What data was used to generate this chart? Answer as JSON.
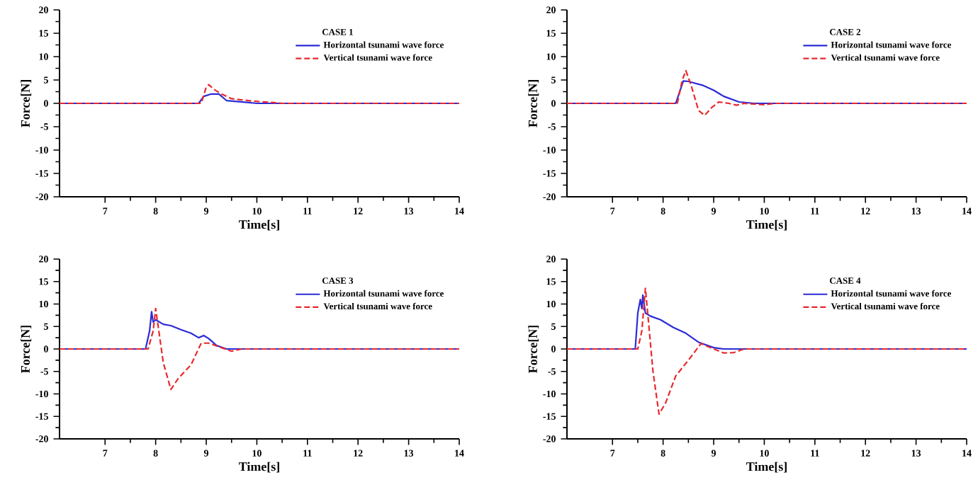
{
  "chart_data": [
    {
      "type": "line",
      "legend_title": "CASE 1",
      "xlabel": "Time[s]",
      "ylabel": "Force[N]",
      "xlim": [
        6.1,
        14
      ],
      "ylim": [
        -20,
        20
      ],
      "xticks": [
        7,
        8,
        9,
        10,
        11,
        12,
        13,
        14
      ],
      "yticks": [
        -20,
        -15,
        -10,
        -5,
        0,
        5,
        10,
        15,
        20
      ],
      "grid": false,
      "legend": "top right",
      "marker": "none",
      "series": [
        {
          "name": "Horizontal tsunami wave force",
          "color": "#2b2bd6",
          "line_style": "solid",
          "x": [
            6.1,
            8.85,
            8.95,
            9.1,
            9.25,
            9.4,
            9.8,
            10,
            14
          ],
          "values": [
            0,
            0,
            1.5,
            2,
            2,
            0.6,
            0.2,
            0,
            0
          ]
        },
        {
          "name": "Vertical tsunami wave force",
          "color": "#e8282c",
          "line_style": "dashed",
          "x": [
            6.1,
            8.9,
            9.0,
            9.05,
            9.15,
            9.3,
            9.5,
            9.9,
            10.3,
            10.5,
            14
          ],
          "values": [
            0,
            0,
            3.5,
            4,
            3,
            2,
            1,
            0.5,
            0.2,
            0,
            0
          ]
        }
      ]
    },
    {
      "type": "line",
      "legend_title": "CASE 2",
      "xlabel": "Time[s]",
      "ylabel": "Force[N]",
      "xlim": [
        6.1,
        14
      ],
      "ylim": [
        -20,
        20
      ],
      "xticks": [
        7,
        8,
        9,
        10,
        11,
        12,
        13,
        14
      ],
      "yticks": [
        -20,
        -15,
        -10,
        -5,
        0,
        5,
        10,
        15,
        20
      ],
      "grid": false,
      "legend": "top right",
      "marker": "none",
      "series": [
        {
          "name": "Horizontal tsunami wave force",
          "color": "#2b2bd6",
          "line_style": "solid",
          "x": [
            6.1,
            8.25,
            8.4,
            8.5,
            8.8,
            9.0,
            9.2,
            9.5,
            9.8,
            14
          ],
          "values": [
            0,
            0,
            4.8,
            4.7,
            3.8,
            2.8,
            1.5,
            0.3,
            0,
            0
          ]
        },
        {
          "name": "Vertical tsunami wave force",
          "color": "#e8282c",
          "line_style": "dashed",
          "x": [
            6.1,
            8.28,
            8.38,
            8.45,
            8.55,
            8.7,
            8.82,
            8.95,
            9.1,
            9.3,
            9.45,
            9.6,
            10,
            10.2,
            14
          ],
          "values": [
            0,
            0,
            5,
            7,
            4,
            -1.5,
            -2.6,
            -1,
            0.3,
            0,
            -0.4,
            0,
            -0.3,
            0,
            0
          ]
        }
      ]
    },
    {
      "type": "line",
      "legend_title": "CASE 3",
      "xlabel": "Time[s]",
      "ylabel": "Force[N]",
      "xlim": [
        6.1,
        14
      ],
      "ylim": [
        -20,
        20
      ],
      "xticks": [
        7,
        8,
        9,
        10,
        11,
        12,
        13,
        14
      ],
      "yticks": [
        -20,
        -15,
        -10,
        -5,
        0,
        5,
        10,
        15,
        20
      ],
      "grid": false,
      "legend": "top right",
      "marker": "none",
      "series": [
        {
          "name": "Horizontal tsunami wave force",
          "color": "#2b2bd6",
          "line_style": "solid",
          "x": [
            6.1,
            7.8,
            7.88,
            7.92,
            7.95,
            8.0,
            8.15,
            8.3,
            8.5,
            8.7,
            8.85,
            8.95,
            9.05,
            9.2,
            9.4,
            14
          ],
          "values": [
            0,
            0,
            4,
            8.3,
            6,
            6.5,
            5.5,
            5.2,
            4.3,
            3.5,
            2.5,
            3,
            2.3,
            0.8,
            0,
            0
          ]
        },
        {
          "name": "Vertical tsunami wave force",
          "color": "#e8282c",
          "line_style": "dashed",
          "x": [
            6.1,
            7.85,
            7.95,
            8.0,
            8.05,
            8.15,
            8.3,
            8.45,
            8.7,
            8.9,
            9.05,
            9.3,
            9.5,
            9.7,
            14
          ],
          "values": [
            0,
            0,
            4,
            9,
            5,
            -3,
            -9,
            -6.5,
            -3.5,
            1.3,
            1.3,
            0.3,
            -0.5,
            0,
            0
          ]
        }
      ]
    },
    {
      "type": "line",
      "legend_title": "CASE 4",
      "xlabel": "Time[s]",
      "ylabel": "Force[N]",
      "xlim": [
        6.1,
        14
      ],
      "ylim": [
        -20,
        20
      ],
      "xticks": [
        7,
        8,
        9,
        10,
        11,
        12,
        13,
        14
      ],
      "yticks": [
        -20,
        -15,
        -10,
        -5,
        0,
        5,
        10,
        15,
        20
      ],
      "grid": false,
      "legend": "top right",
      "marker": "none",
      "series": [
        {
          "name": "Horizontal tsunami wave force",
          "color": "#2b2bd6",
          "line_style": "solid",
          "x": [
            6.1,
            7.45,
            7.5,
            7.55,
            7.58,
            7.6,
            7.65,
            7.75,
            7.95,
            8.2,
            8.45,
            8.7,
            9.0,
            9.2,
            14
          ],
          "values": [
            0,
            0,
            8,
            11,
            9,
            12,
            8,
            7.3,
            6.5,
            4.8,
            3.5,
            1.5,
            0.3,
            0,
            0
          ]
        },
        {
          "name": "Vertical tsunami wave force",
          "color": "#e8282c",
          "line_style": "dashed",
          "x": [
            6.1,
            7.5,
            7.58,
            7.65,
            7.72,
            7.8,
            7.92,
            8.05,
            8.25,
            8.5,
            8.75,
            9.0,
            9.2,
            9.4,
            9.6,
            14
          ],
          "values": [
            0,
            0,
            4,
            13.5,
            5,
            -5,
            -14.5,
            -12,
            -6,
            -2.5,
            1.2,
            0,
            -0.9,
            -0.8,
            0,
            0
          ]
        }
      ]
    }
  ]
}
